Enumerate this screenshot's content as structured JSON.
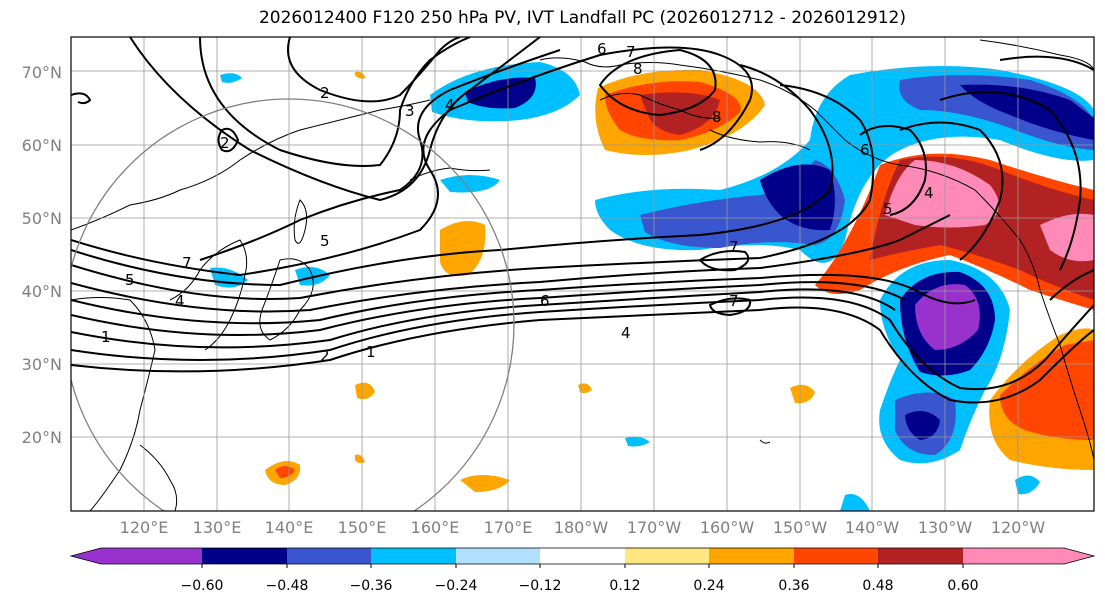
{
  "title": "2026012400 F120 250 hPa PV, IVT Landfall PC (2026012712 - 2026012912)",
  "lat_labels": [
    "70°N",
    "60°N",
    "50°N",
    "40°N",
    "30°N",
    "20°N"
  ],
  "lon_labels": [
    "120°E",
    "130°E",
    "140°E",
    "150°E",
    "160°E",
    "170°E",
    "180°W",
    "170°W",
    "160°W",
    "150°W",
    "140°W",
    "130°W",
    "120°W"
  ],
  "colorbar": {
    "ticks": [
      "−0.60",
      "−0.48",
      "−0.36",
      "−0.24",
      "−0.12",
      "0.12",
      "0.24",
      "0.36",
      "0.48",
      "0.60"
    ],
    "colors": [
      "#9932CC",
      "#00008B",
      "#3A56CF",
      "#00BFFF",
      "#B0E0FF",
      "#FFFFFF",
      "#FFE680",
      "#FFA500",
      "#FF4500",
      "#B22222",
      "#FF8AB8"
    ]
  },
  "contour_labels": [
    "1",
    "2",
    "3",
    "4",
    "5",
    "6",
    "7",
    "8"
  ],
  "contour_annotations": [
    {
      "text": "2"
    },
    {
      "text": "3"
    },
    {
      "text": "4"
    },
    {
      "text": "6"
    },
    {
      "text": "7"
    },
    {
      "text": "8"
    },
    {
      "text": "2"
    },
    {
      "text": "5"
    },
    {
      "text": "7"
    },
    {
      "text": "5"
    },
    {
      "text": "4"
    },
    {
      "text": "1"
    },
    {
      "text": "6"
    },
    {
      "text": "4"
    },
    {
      "text": "2"
    },
    {
      "text": "1"
    },
    {
      "text": "7"
    },
    {
      "text": "7"
    },
    {
      "text": "8"
    },
    {
      "text": "5"
    },
    {
      "text": "4"
    },
    {
      "text": "6"
    }
  ]
}
